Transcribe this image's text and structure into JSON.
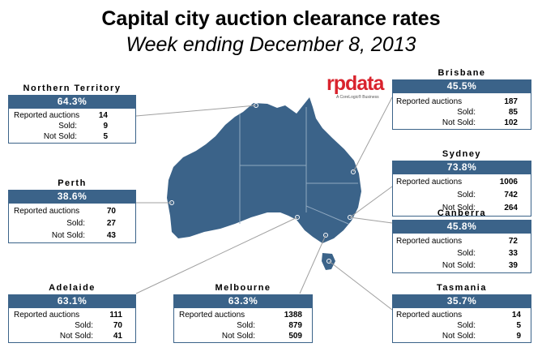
{
  "title": "Capital city auction clearance rates",
  "subtitle": "Week ending December 8, 2013",
  "logo": {
    "brand": "rpdata",
    "tagline": "A CoreLogic® Business",
    "color": "#d9232d"
  },
  "colors": {
    "map": "#3b6389",
    "accent": "#3b6389"
  },
  "labels": {
    "reported": "Reported auctions",
    "sold": "Sold:",
    "not_sold": "Not Sold:"
  },
  "cities": {
    "nt": {
      "name": "Northern Territory",
      "rate": "64.3%",
      "reported": "14",
      "sold": "9",
      "not_sold": "5"
    },
    "per": {
      "name": "Perth",
      "rate": "38.6%",
      "reported": "70",
      "sold": "27",
      "not_sold": "43"
    },
    "adl": {
      "name": "Adelaide",
      "rate": "63.1%",
      "reported": "111",
      "sold": "70",
      "not_sold": "41"
    },
    "mel": {
      "name": "Melbourne",
      "rate": "63.3%",
      "reported": "1388",
      "sold": "879",
      "not_sold": "509"
    },
    "bne": {
      "name": "Brisbane",
      "rate": "45.5%",
      "reported": "187",
      "sold": "85",
      "not_sold": "102"
    },
    "syd": {
      "name": "Sydney",
      "rate": "73.8%",
      "reported": "1006",
      "sold": "742",
      "not_sold": "264"
    },
    "cbr": {
      "name": "Canberra",
      "rate": "45.8%",
      "reported": "72",
      "sold": "33",
      "not_sold": "39"
    },
    "tas": {
      "name": "Tasmania",
      "rate": "35.7%",
      "reported": "14",
      "sold": "5",
      "not_sold": "9"
    }
  }
}
